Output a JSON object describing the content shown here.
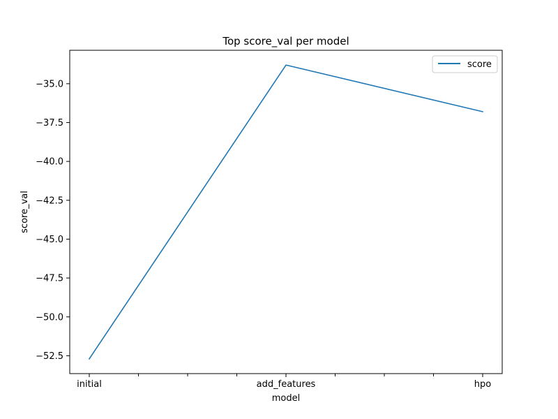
{
  "chart_data": {
    "type": "line",
    "title": "Top score_val per model",
    "xlabel": "model",
    "ylabel": "score_val",
    "categories": [
      "initial",
      "add_features",
      "hpo"
    ],
    "series": [
      {
        "name": "score",
        "values": [
          -52.7,
          -33.8,
          -36.8
        ],
        "color": "#1f77b4"
      }
    ],
    "yticks": [
      -52.5,
      -50.0,
      -47.5,
      -45.0,
      -42.5,
      -40.0,
      -37.5,
      -35.0
    ],
    "ytick_labels": [
      "−52.5",
      "−50.0",
      "−47.5",
      "−45.0",
      "−42.5",
      "−40.0",
      "−37.5",
      "−35.0"
    ],
    "ylim": [
      -53.65,
      -32.85
    ],
    "grid": false,
    "legend_position": "upper right"
  }
}
